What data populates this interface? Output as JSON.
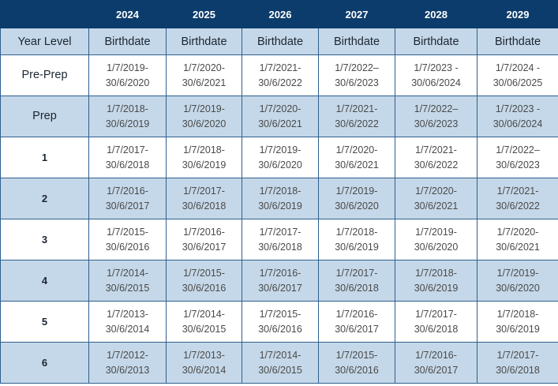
{
  "years": [
    "",
    "2024",
    "2025",
    "2026",
    "2027",
    "2028",
    "2029"
  ],
  "subheaders": [
    "Year Level",
    "Birthdate",
    "Birthdate",
    "Birthdate",
    "Birthdate",
    "Birthdate",
    "Birthdate"
  ],
  "rows": [
    {
      "level": "Pre-Prep",
      "cells": [
        [
          "1/7/2019-",
          "30/6/2020"
        ],
        [
          "1/7/2020-",
          "30/6/2021"
        ],
        [
          "1/7/2021-",
          "30/6/2022"
        ],
        [
          "1/7/2022–",
          "30/6/2023"
        ],
        [
          "1/7/2023 -",
          "30/06/2024"
        ],
        [
          "1/7/2024 -",
          "30/06/2025"
        ]
      ]
    },
    {
      "level": "Prep",
      "cells": [
        [
          "1/7/2018-",
          "30/6/2019"
        ],
        [
          "1/7/2019-",
          "30/6/2020"
        ],
        [
          "1/7/2020-",
          "30/6/2021"
        ],
        [
          "1/7/2021-",
          "30/6/2022"
        ],
        [
          "1/7/2022–",
          "30/6/2023"
        ],
        [
          "1/7/2023 -",
          "30/06/2024"
        ]
      ]
    },
    {
      "level": "1",
      "cells": [
        [
          "1/7/2017-",
          "30/6/2018"
        ],
        [
          "1/7/2018-",
          "30/6/2019"
        ],
        [
          "1/7/2019-",
          "30/6/2020"
        ],
        [
          "1/7/2020-",
          "30/6/2021"
        ],
        [
          "1/7/2021-",
          "30/6/2022"
        ],
        [
          "1/7/2022–",
          "30/6/2023"
        ]
      ]
    },
    {
      "level": "2",
      "cells": [
        [
          "1/7/2016-",
          "30/6/2017"
        ],
        [
          "1/7/2017-",
          "30/6/2018"
        ],
        [
          "1/7/2018-",
          "30/6/2019"
        ],
        [
          "1/7/2019-",
          "30/6/2020"
        ],
        [
          "1/7/2020-",
          "30/6/2021"
        ],
        [
          "1/7/2021-",
          "30/6/2022"
        ]
      ]
    },
    {
      "level": "3",
      "cells": [
        [
          "1/7/2015-",
          "30/6/2016"
        ],
        [
          "1/7/2016-",
          "30/6/2017"
        ],
        [
          "1/7/2017-",
          "30/6/2018"
        ],
        [
          "1/7/2018-",
          "30/6/2019"
        ],
        [
          "1/7/2019-",
          "30/6/2020"
        ],
        [
          "1/7/2020-",
          "30/6/2021"
        ]
      ]
    },
    {
      "level": "4",
      "cells": [
        [
          "1/7/2014-",
          "30/6/2015"
        ],
        [
          "1/7/2015-",
          "30/6/2016"
        ],
        [
          "1/7/2016-",
          "30/6/2017"
        ],
        [
          "1/7/2017-",
          "30/6/2018"
        ],
        [
          "1/7/2018-",
          "30/6/2019"
        ],
        [
          "1/7/2019-",
          "30/6/2020"
        ]
      ]
    },
    {
      "level": "5",
      "cells": [
        [
          "1/7/2013-",
          "30/6/2014"
        ],
        [
          "1/7/2014-",
          "30/6/2015"
        ],
        [
          "1/7/2015-",
          "30/6/2016"
        ],
        [
          "1/7/2016-",
          "30/6/2017"
        ],
        [
          "1/7/2017-",
          "30/6/2018"
        ],
        [
          "1/7/2018-",
          "30/6/2019"
        ]
      ]
    },
    {
      "level": "6",
      "cells": [
        [
          "1/7/2012-",
          "30/6/2013"
        ],
        [
          "1/7/2013-",
          "30/6/2014"
        ],
        [
          "1/7/2014-",
          "30/6/2015"
        ],
        [
          "1/7/2015-",
          "30/6/2016"
        ],
        [
          "1/7/2016-",
          "30/6/2017"
        ],
        [
          "1/7/2017-",
          "30/6/2018"
        ]
      ]
    }
  ],
  "colors": {
    "header_bg": "#0c3c6b",
    "alt_row_bg": "#c5d8e9",
    "border": "#2e5f8f"
  }
}
